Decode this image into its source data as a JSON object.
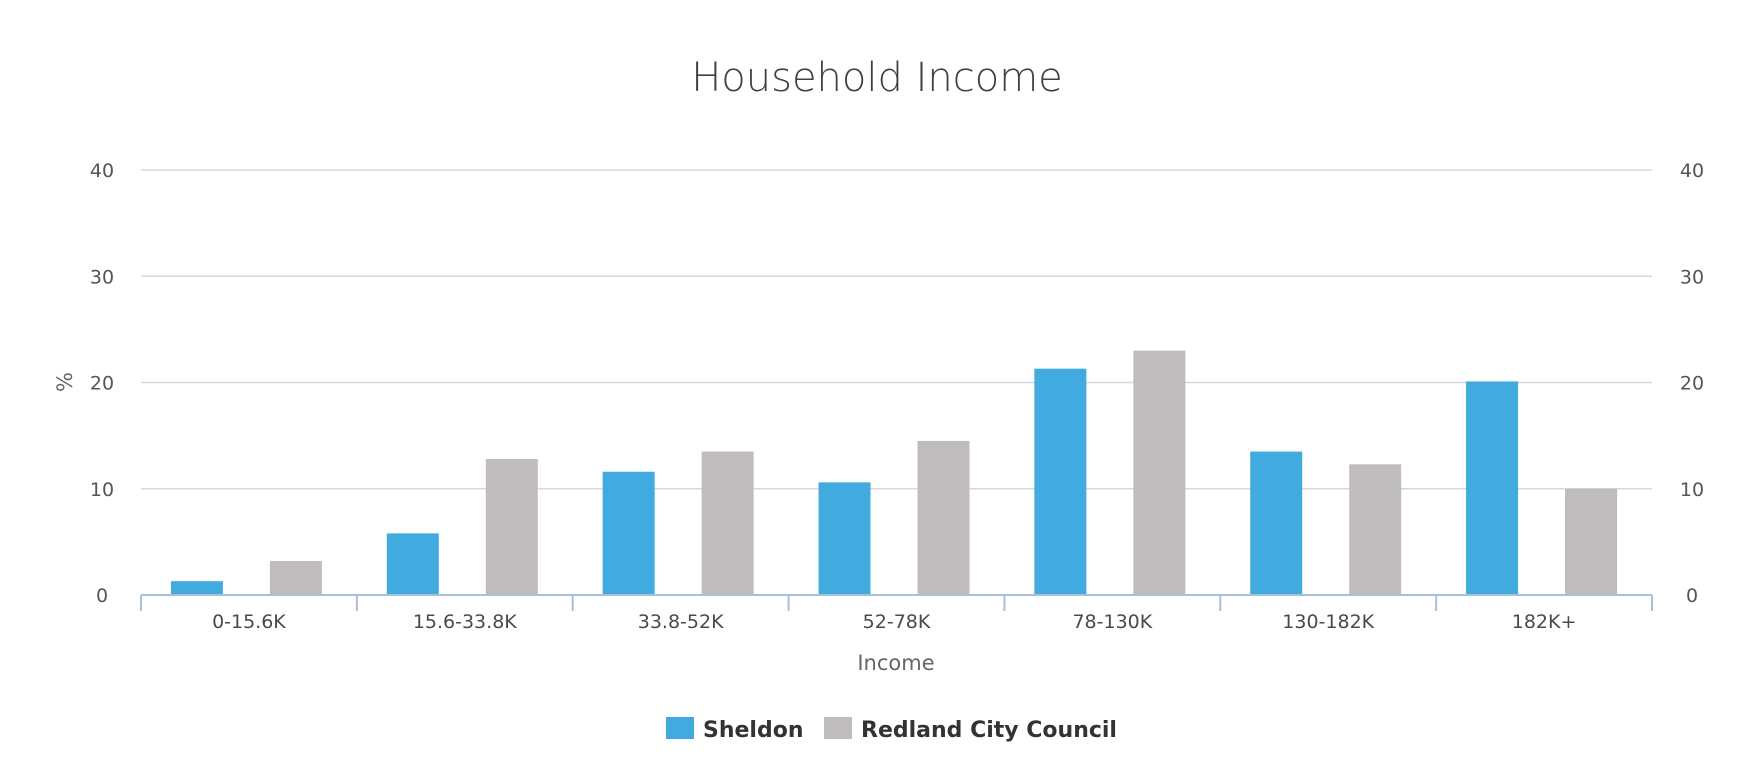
{
  "chart_data": {
    "type": "bar",
    "title": "Household Income",
    "xlabel": "Income",
    "ylabel": "%",
    "ylim": [
      0,
      40
    ],
    "yticks": [
      0,
      10,
      20,
      30,
      40
    ],
    "y2ticks": [
      0,
      10,
      20,
      30,
      40
    ],
    "grid": true,
    "legend_position": "bottom-center",
    "categories": [
      "0-15.6K",
      "15.6-33.8K",
      "33.8-52K",
      "52-78K",
      "78-130K",
      "130-182K",
      "182K+"
    ],
    "series": [
      {
        "name": "Sheldon",
        "color": "#41abe0",
        "values": [
          1.3,
          5.8,
          11.6,
          10.6,
          21.3,
          13.5,
          20.1
        ]
      },
      {
        "name": "Redland City Council",
        "color": "#c0bcbc",
        "values": [
          3.2,
          12.8,
          13.5,
          14.5,
          23.0,
          12.3,
          10.0
        ]
      }
    ]
  }
}
